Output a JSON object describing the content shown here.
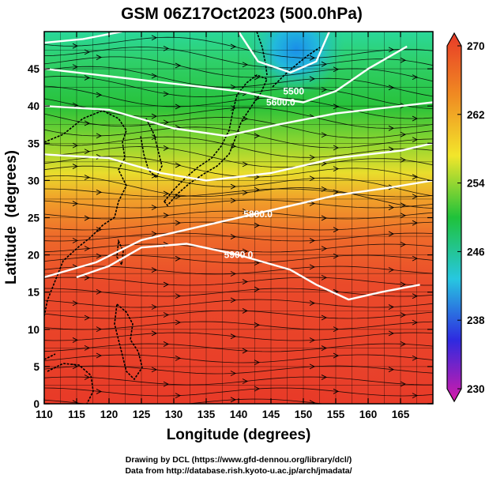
{
  "title": "GSM 06Z17Oct2023 (500.0hPa)",
  "x_axis": {
    "label": "Longitude (degrees)",
    "min": 110,
    "max": 170,
    "ticks": [
      110,
      115,
      120,
      125,
      130,
      135,
      140,
      145,
      150,
      155,
      160,
      165
    ]
  },
  "y_axis": {
    "label": "Latitude  (degrees)",
    "min": 0,
    "max": 50,
    "ticks": [
      0,
      5,
      10,
      15,
      20,
      25,
      30,
      35,
      40,
      45
    ]
  },
  "colorbar": {
    "min": 230,
    "max": 270,
    "ticks": [
      230,
      238,
      246,
      254,
      262,
      270
    ],
    "gradient": [
      "#d61aa8",
      "#2e2ae0",
      "#27c7e0",
      "#1fc23a",
      "#f2e62b",
      "#f08a22",
      "#e83a28"
    ]
  },
  "contours": [
    {
      "label": "5900.0",
      "points": [
        [
          115,
          17
        ],
        [
          120,
          18.5
        ],
        [
          125,
          21
        ],
        [
          132,
          21.5
        ],
        [
          140,
          20
        ],
        [
          148,
          18
        ],
        [
          152,
          16
        ],
        [
          157,
          14
        ],
        [
          162,
          15
        ],
        [
          168,
          16
        ]
      ]
    },
    {
      "label": "5800.0",
      "points": [
        [
          110,
          17
        ],
        [
          118,
          19
        ],
        [
          125,
          22
        ],
        [
          135,
          24
        ],
        [
          145,
          26
        ],
        [
          155,
          28
        ],
        [
          163,
          29
        ],
        [
          170,
          30
        ]
      ]
    },
    {
      "label": "",
      "points": [
        [
          110,
          33.5
        ],
        [
          120,
          33
        ],
        [
          128,
          31
        ],
        [
          135,
          30
        ],
        [
          145,
          31
        ],
        [
          155,
          33
        ],
        [
          165,
          34
        ],
        [
          170,
          35
        ]
      ]
    },
    {
      "label": "",
      "points": [
        [
          110,
          40
        ],
        [
          120,
          39.5
        ],
        [
          130,
          37
        ],
        [
          138,
          36
        ],
        [
          146,
          37.5
        ],
        [
          155,
          39
        ],
        [
          165,
          40
        ],
        [
          170,
          40.5
        ]
      ]
    },
    {
      "label": "5600.0",
      "points": [
        [
          110,
          45
        ],
        [
          120,
          44
        ],
        [
          130,
          43
        ],
        [
          140,
          42
        ],
        [
          146,
          41
        ],
        [
          150,
          40.5
        ],
        [
          155,
          42
        ],
        [
          160,
          45
        ],
        [
          166,
          48
        ]
      ]
    },
    {
      "label": "",
      "points": [
        [
          140,
          50
        ],
        [
          143,
          46
        ],
        [
          148,
          44.5
        ],
        [
          152,
          46
        ],
        [
          154,
          50
        ]
      ]
    },
    {
      "label": "",
      "points": [
        [
          110,
          48.5
        ],
        [
          116,
          49
        ],
        [
          122,
          50
        ]
      ]
    }
  ],
  "contour_labels_shown": [
    {
      "text": "5900.0",
      "lon": 140,
      "lat": 20
    },
    {
      "text": "5800.0",
      "lon": 143,
      "lat": 25.5
    },
    {
      "text": "5600.0",
      "lon": 146.5,
      "lat": 40.5
    },
    {
      "text": "5500",
      "lon": 148.5,
      "lat": 42
    }
  ],
  "footer": {
    "line1": "Drawing by DCL (https://www.gfd-dennou.org/library/dcl/)",
    "line2": "Data from http://database.rish.kyoto-u.ac.jp/arch/jmadata/"
  }
}
